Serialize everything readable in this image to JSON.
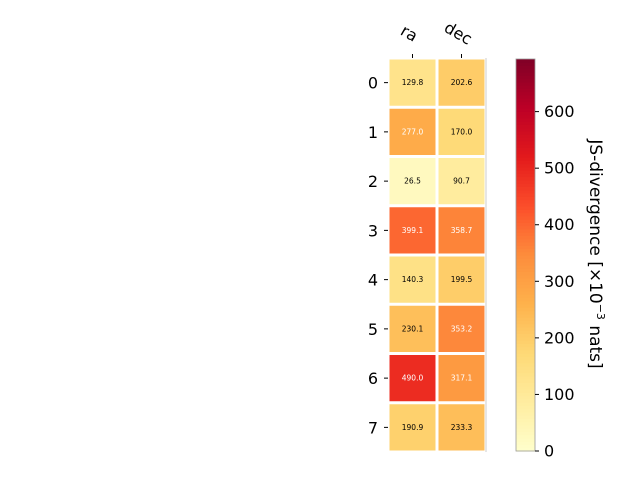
{
  "chart_data": {
    "type": "heatmap",
    "columns": [
      "ra",
      "dec"
    ],
    "rows": [
      "0",
      "1",
      "2",
      "3",
      "4",
      "5",
      "6",
      "7"
    ],
    "values": [
      [
        129.8,
        202.6
      ],
      [
        277.0,
        170.0
      ],
      [
        26.5,
        90.7
      ],
      [
        399.1,
        358.7
      ],
      [
        140.3,
        199.5
      ],
      [
        230.1,
        353.2
      ],
      [
        490.0,
        317.1
      ],
      [
        190.9,
        233.3
      ]
    ],
    "cell_labels": [
      [
        "129.8",
        "202.6"
      ],
      [
        "277.0",
        "170.0"
      ],
      [
        "26.5",
        "90.7"
      ],
      [
        "399.1",
        "358.7"
      ],
      [
        "140.3",
        "199.5"
      ],
      [
        "230.1",
        "353.2"
      ],
      [
        "490.0",
        "317.1"
      ],
      [
        "190.9",
        "233.3"
      ]
    ],
    "colorbar": {
      "label_main": "JS-divergence [×10",
      "label_exp": "−3",
      "label_tail": " nats]",
      "range": [
        0,
        693
      ],
      "ticks": [
        0,
        100,
        200,
        300,
        400,
        500,
        600
      ],
      "tick_labels": [
        "0",
        "100",
        "200",
        "300",
        "400",
        "500",
        "600"
      ],
      "colormap": "YlOrRd"
    }
  }
}
